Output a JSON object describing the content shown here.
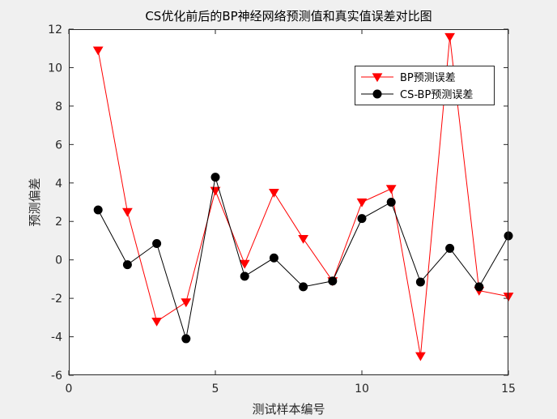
{
  "chart_data": {
    "type": "line",
    "title": "CS优化前后的BP神经网络预测值和真实值误差对比图",
    "xlabel": "测试样本编号",
    "ylabel": "预测偏差",
    "xlim": [
      0,
      15
    ],
    "ylim": [
      -6,
      12
    ],
    "xticks": [
      0,
      5,
      10,
      15
    ],
    "yticks": [
      -6,
      -4,
      -2,
      0,
      2,
      4,
      6,
      8,
      10,
      12
    ],
    "grid": false,
    "legend_position": "top-right",
    "series": [
      {
        "name": "BP预测误差",
        "color": "#ff0000",
        "marker": "triangle-down",
        "x": [
          1,
          2,
          3,
          4,
          5,
          6,
          7,
          8,
          9,
          10,
          11,
          12,
          13,
          14,
          15
        ],
        "values": [
          10.9,
          2.5,
          -3.2,
          -2.2,
          3.6,
          -0.2,
          3.5,
          1.1,
          -1.1,
          3.0,
          3.7,
          -5.0,
          11.6,
          -1.6,
          -1.9
        ]
      },
      {
        "name": "CS-BP预测误差",
        "color": "#000000",
        "marker": "circle",
        "x": [
          1,
          2,
          3,
          4,
          5,
          6,
          7,
          8,
          9,
          10,
          11,
          12,
          13,
          14,
          15
        ],
        "values": [
          2.6,
          -0.25,
          0.85,
          -4.1,
          4.3,
          -0.85,
          0.1,
          -1.4,
          -1.1,
          2.15,
          3.0,
          -1.15,
          0.6,
          -1.4,
          1.25
        ]
      }
    ]
  }
}
